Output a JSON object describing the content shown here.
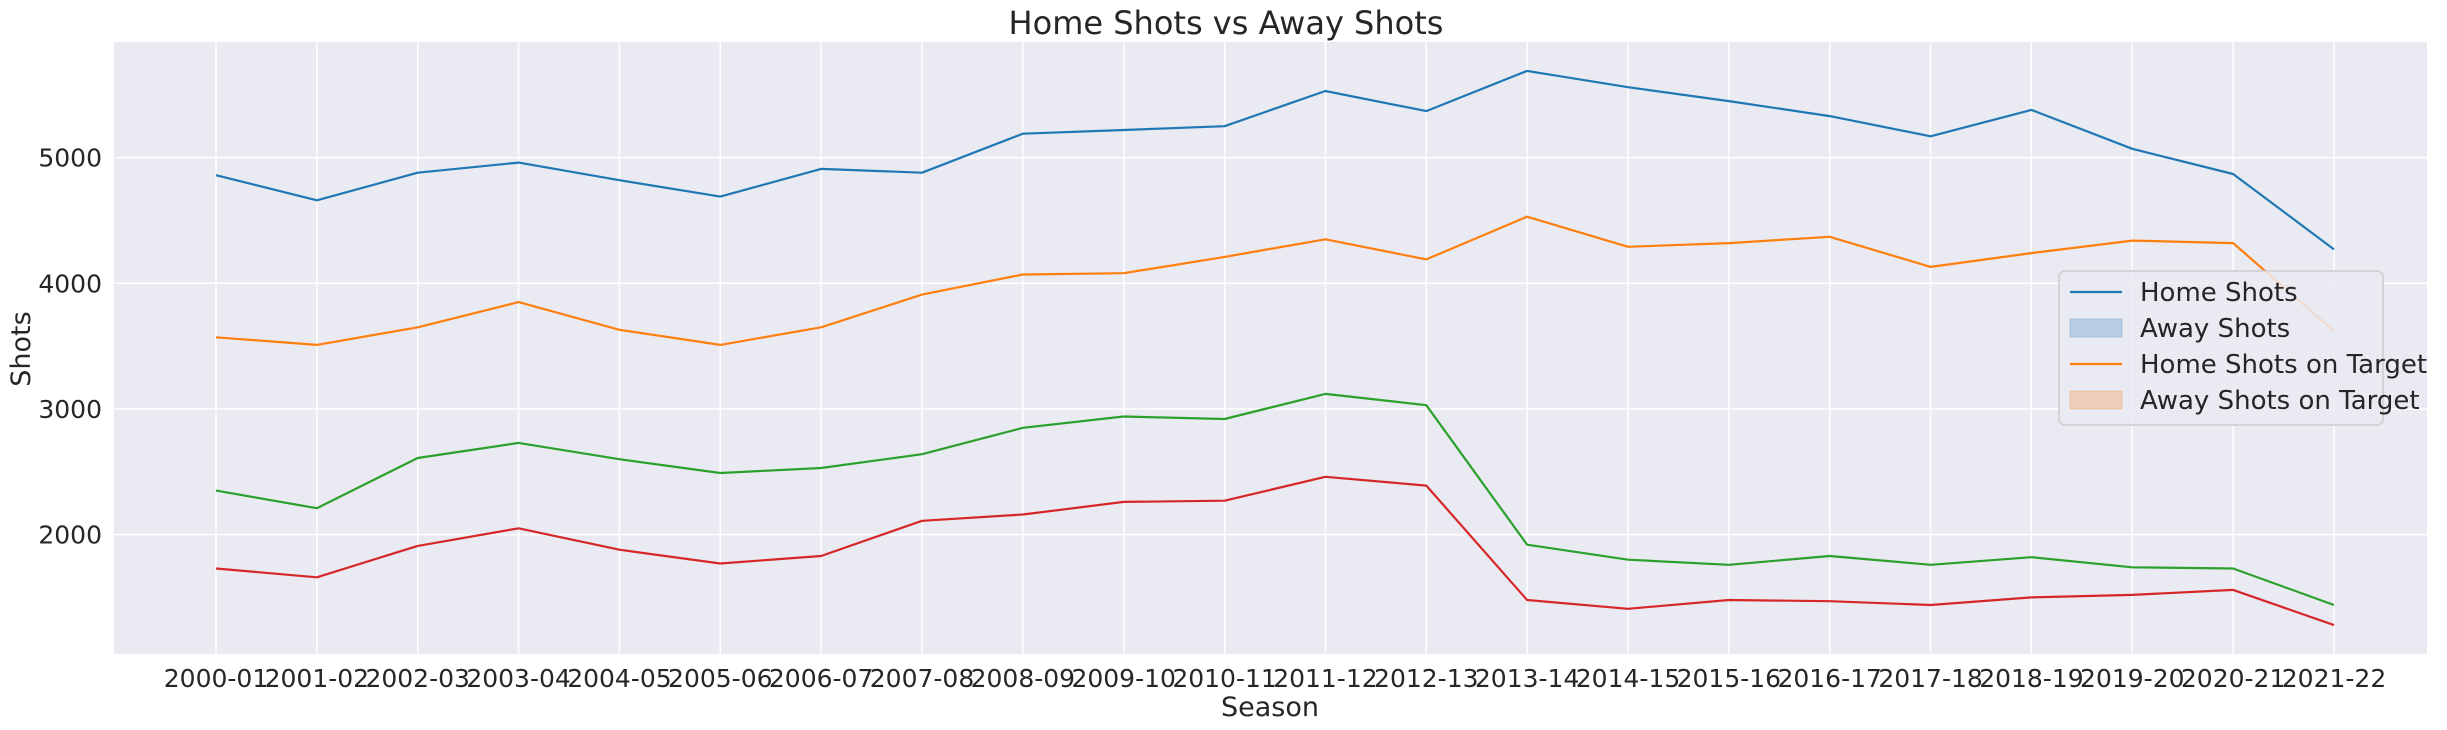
{
  "chart_data": {
    "type": "line",
    "title": "Home Shots vs Away Shots",
    "xlabel": "Season",
    "ylabel": "Shots",
    "categories": [
      "2000-01",
      "2001-02",
      "2002-03",
      "2003-04",
      "2004-05",
      "2005-06",
      "2006-07",
      "2007-08",
      "2008-09",
      "2009-10",
      "2010-11",
      "2011-12",
      "2012-13",
      "2013-14",
      "2014-15",
      "2015-16",
      "2016-17",
      "2017-18",
      "2018-19",
      "2019-20",
      "2020-21",
      "2021-22"
    ],
    "ylim": [
      1050,
      5920
    ],
    "yticks": [
      2000,
      3000,
      4000,
      5000
    ],
    "grid": true,
    "legend_position": "right",
    "legend": [
      {
        "label": "Home Shots",
        "kind": "line",
        "color": "#1f77b4"
      },
      {
        "label": "Away Shots",
        "kind": "patch",
        "color": "#1f77b4"
      },
      {
        "label": "Home Shots on Target",
        "kind": "line",
        "color": "#ff7f0e"
      },
      {
        "label": "Away Shots on Target",
        "kind": "patch",
        "color": "#ff7f0e"
      }
    ],
    "series": [
      {
        "color": "#1f77b4",
        "values": [
          4860,
          4660,
          4880,
          4960,
          4820,
          4690,
          4910,
          4880,
          5190,
          5220,
          5250,
          5530,
          5370,
          5690,
          5560,
          5450,
          5330,
          5170,
          5380,
          5070,
          4870,
          4270
        ]
      },
      {
        "color": "#ff7f0e",
        "values": [
          3570,
          3510,
          3650,
          3850,
          3630,
          3510,
          3650,
          3910,
          4070,
          4080,
          4210,
          4350,
          4190,
          4530,
          4290,
          4320,
          4370,
          4130,
          4240,
          4340,
          4320,
          3620
        ]
      },
      {
        "color": "#2ca02c",
        "values": [
          2350,
          2210,
          2610,
          2730,
          2600,
          2490,
          2530,
          2640,
          2850,
          2940,
          2920,
          3120,
          3030,
          1920,
          1800,
          1760,
          1830,
          1760,
          1820,
          1740,
          1730,
          1440
        ]
      },
      {
        "color": "#d62728",
        "values": [
          1730,
          1660,
          1910,
          2050,
          1880,
          1770,
          1830,
          2110,
          2160,
          2260,
          2270,
          2460,
          2390,
          1480,
          1410,
          1480,
          1470,
          1440,
          1500,
          1520,
          1560,
          1280
        ]
      }
    ]
  }
}
